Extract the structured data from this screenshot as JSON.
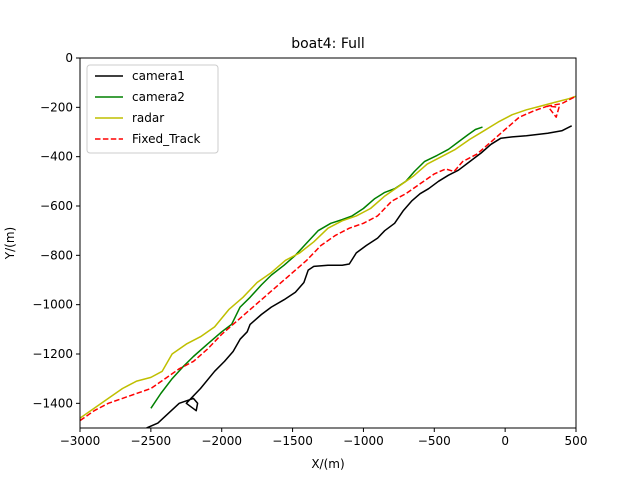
{
  "chart_data": {
    "type": "line",
    "title": "boat4: Full",
    "xlabel": "X/(m)",
    "ylabel": "Y/(m)",
    "xlim": [
      -3000,
      500
    ],
    "ylim": [
      -1500,
      0
    ],
    "xticks": [
      -3000,
      -2500,
      -2000,
      -1500,
      -1000,
      -500,
      0,
      500
    ],
    "yticks": [
      0,
      -200,
      -400,
      -600,
      -800,
      -1000,
      -1200,
      -1400
    ],
    "grid": false,
    "legend_position": "top-left",
    "series": [
      {
        "name": "camera1",
        "color": "#000000",
        "dash": "solid",
        "points": [
          [
            -2530,
            -1500
          ],
          [
            -2450,
            -1480
          ],
          [
            -2300,
            -1400
          ],
          [
            -2200,
            -1380
          ],
          [
            -2170,
            -1400
          ],
          [
            -2180,
            -1430
          ],
          [
            -2250,
            -1400
          ],
          [
            -2150,
            -1340
          ],
          [
            -2050,
            -1270
          ],
          [
            -1980,
            -1230
          ],
          [
            -1920,
            -1190
          ],
          [
            -1870,
            -1140
          ],
          [
            -1820,
            -1110
          ],
          [
            -1800,
            -1080
          ],
          [
            -1720,
            -1040
          ],
          [
            -1650,
            -1010
          ],
          [
            -1560,
            -980
          ],
          [
            -1480,
            -950
          ],
          [
            -1420,
            -910
          ],
          [
            -1390,
            -860
          ],
          [
            -1350,
            -845
          ],
          [
            -1250,
            -840
          ],
          [
            -1150,
            -840
          ],
          [
            -1100,
            -835
          ],
          [
            -1050,
            -790
          ],
          [
            -980,
            -760
          ],
          [
            -900,
            -730
          ],
          [
            -850,
            -700
          ],
          [
            -780,
            -670
          ],
          [
            -720,
            -620
          ],
          [
            -660,
            -580
          ],
          [
            -600,
            -550
          ],
          [
            -540,
            -530
          ],
          [
            -470,
            -500
          ],
          [
            -400,
            -475
          ],
          [
            -330,
            -455
          ],
          [
            -250,
            -420
          ],
          [
            -170,
            -385
          ],
          [
            -100,
            -350
          ],
          [
            -30,
            -325
          ],
          [
            50,
            -320
          ],
          [
            150,
            -315
          ],
          [
            300,
            -305
          ],
          [
            400,
            -295
          ],
          [
            470,
            -275
          ]
        ]
      },
      {
        "name": "camera2",
        "color": "#008000",
        "dash": "solid",
        "points": [
          [
            -2500,
            -1420
          ],
          [
            -2430,
            -1360
          ],
          [
            -2350,
            -1300
          ],
          [
            -2270,
            -1250
          ],
          [
            -2200,
            -1210
          ],
          [
            -2100,
            -1160
          ],
          [
            -2000,
            -1110
          ],
          [
            -1930,
            -1080
          ],
          [
            -1870,
            -1010
          ],
          [
            -1800,
            -970
          ],
          [
            -1720,
            -920
          ],
          [
            -1650,
            -880
          ],
          [
            -1560,
            -840
          ],
          [
            -1480,
            -800
          ],
          [
            -1400,
            -750
          ],
          [
            -1320,
            -700
          ],
          [
            -1230,
            -670
          ],
          [
            -1150,
            -655
          ],
          [
            -1080,
            -640
          ],
          [
            -1000,
            -610
          ],
          [
            -920,
            -570
          ],
          [
            -850,
            -545
          ],
          [
            -780,
            -530
          ],
          [
            -700,
            -500
          ],
          [
            -640,
            -460
          ],
          [
            -570,
            -420
          ],
          [
            -480,
            -395
          ],
          [
            -400,
            -370
          ],
          [
            -330,
            -340
          ],
          [
            -260,
            -310
          ],
          [
            -210,
            -290
          ],
          [
            -160,
            -280
          ]
        ]
      },
      {
        "name": "radar",
        "color": "#bfbf00",
        "dash": "solid",
        "points": [
          [
            -3000,
            -1460
          ],
          [
            -2900,
            -1420
          ],
          [
            -2800,
            -1380
          ],
          [
            -2700,
            -1340
          ],
          [
            -2600,
            -1310
          ],
          [
            -2500,
            -1295
          ],
          [
            -2420,
            -1270
          ],
          [
            -2350,
            -1200
          ],
          [
            -2250,
            -1160
          ],
          [
            -2150,
            -1130
          ],
          [
            -2050,
            -1090
          ],
          [
            -1950,
            -1020
          ],
          [
            -1850,
            -970
          ],
          [
            -1750,
            -910
          ],
          [
            -1650,
            -870
          ],
          [
            -1550,
            -820
          ],
          [
            -1450,
            -790
          ],
          [
            -1350,
            -745
          ],
          [
            -1250,
            -690
          ],
          [
            -1150,
            -660
          ],
          [
            -1050,
            -640
          ],
          [
            -950,
            -610
          ],
          [
            -850,
            -560
          ],
          [
            -750,
            -520
          ],
          [
            -650,
            -480
          ],
          [
            -550,
            -430
          ],
          [
            -450,
            -400
          ],
          [
            -350,
            -370
          ],
          [
            -250,
            -330
          ],
          [
            -150,
            -295
          ],
          [
            -50,
            -260
          ],
          [
            50,
            -230
          ],
          [
            150,
            -210
          ],
          [
            250,
            -195
          ],
          [
            350,
            -180
          ],
          [
            450,
            -165
          ],
          [
            500,
            -155
          ]
        ]
      },
      {
        "name": "Fixed_Track",
        "color": "#ff0000",
        "dash": "dashed",
        "points": [
          [
            -3000,
            -1470
          ],
          [
            -2900,
            -1430
          ],
          [
            -2800,
            -1400
          ],
          [
            -2650,
            -1370
          ],
          [
            -2500,
            -1340
          ],
          [
            -2400,
            -1300
          ],
          [
            -2300,
            -1260
          ],
          [
            -2200,
            -1230
          ],
          [
            -2100,
            -1180
          ],
          [
            -2000,
            -1120
          ],
          [
            -1900,
            -1070
          ],
          [
            -1800,
            -1020
          ],
          [
            -1700,
            -970
          ],
          [
            -1600,
            -920
          ],
          [
            -1500,
            -870
          ],
          [
            -1400,
            -820
          ],
          [
            -1300,
            -760
          ],
          [
            -1200,
            -720
          ],
          [
            -1100,
            -690
          ],
          [
            -1000,
            -670
          ],
          [
            -900,
            -640
          ],
          [
            -800,
            -580
          ],
          [
            -700,
            -550
          ],
          [
            -600,
            -510
          ],
          [
            -500,
            -470
          ],
          [
            -420,
            -450
          ],
          [
            -360,
            -460
          ],
          [
            -300,
            -420
          ],
          [
            -200,
            -390
          ],
          [
            -100,
            -340
          ],
          [
            0,
            -290
          ],
          [
            100,
            -240
          ],
          [
            200,
            -215
          ],
          [
            300,
            -195
          ],
          [
            380,
            -200
          ],
          [
            360,
            -240
          ],
          [
            300,
            -195
          ],
          [
            400,
            -185
          ],
          [
            500,
            -155
          ]
        ]
      }
    ]
  }
}
